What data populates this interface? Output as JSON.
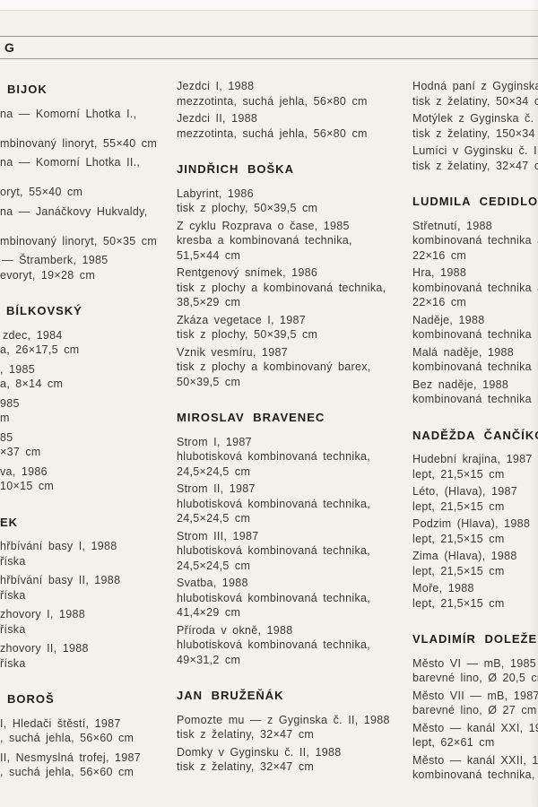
{
  "page": {
    "section_letter": "G"
  },
  "columns": {
    "left": {
      "lines": [
        "BIJOK",
        "na — Komorní Lhotka I.,",
        "",
        "mbinovaný linoryt, 55×40 cm",
        "na — Komorní Lhotka II.,",
        "",
        "oryt, 55×40 cm",
        "na — Janáčkovy Hukvaldy,",
        "",
        "mbinovaný linoryt, 50×35 cm",
        "— Štramberk, 1985",
        "evoryt, 19×28 cm",
        "BÍLKOVSKÝ",
        "zdec, 1984",
        "a, 26×17,5 cm",
        ", 1985",
        "a, 8×14 cm",
        "985",
        "m",
        "85",
        "×37 cm",
        "va, 1986",
        "10×15 cm",
        "EK",
        "hřbívání basy I, 1988",
        "říska",
        "hřbívání basy II, 1988",
        "říska",
        "zhovory I, 1988",
        "říska",
        "zhovory II, 1988",
        "říska",
        "BOROŠ",
        "I, Hledači štěstí, 1987",
        ", suchá jehla, 56×60 cm",
        "II, Nesmyslná trofej, 1987",
        ", suchá jehla, 56×60 cm"
      ]
    },
    "middle": {
      "lines": [
        "Jezdci I, 1988",
        "mezzotinta, suchá jehla, 56×80 cm",
        "Jezdci II, 1988",
        "mezzotinta, suchá jehla, 56×80 cm",
        "JINDŘICH BOŠKA",
        "Labyrint, 1986",
        "tisk z plochy, 50×39,5 cm",
        "Z cyklu Rozprava o čase, 1985",
        "kresba a kombinovaná technika,",
        "51,5×44 cm",
        "Rentgenový snímek, 1986",
        "tisk z plochy a kombinovaná technika,",
        "38,5×29 cm",
        "Zkáza vegetace I, 1987",
        "tisk z plochy, 50×39,5 cm",
        "Vznik vesmíru, 1987",
        "tisk z plochy a kombinovaný barex,",
        "50×39,5 cm",
        "MIROSLAV BRAVENEC",
        "Strom I, 1987",
        "hlubotisková kombinovaná technika,",
        "24,5×24,5 cm",
        "Strom II, 1987",
        "hlubotisková kombinovaná technika,",
        "24,5×24,5 cm",
        "Strom III, 1987",
        "hlubotisková kombinovaná technika,",
        "24,5×24,5 cm",
        "Svatba, 1988",
        "hlubotisková kombinovaná technika,",
        "41,4×29 cm",
        "Příroda v okně, 1988",
        "hlubotisková kombinovaná technika,",
        "49×31,2 cm",
        "JAN BRUŽEŇÁK",
        "Pomozte mu — z Gyginska č. II, 1988",
        "tisk z želatiny, 32×47 cm",
        "Domky v Gyginsku č. II, 1988",
        "tisk z želatiny, 32×47 cm"
      ]
    },
    "right": {
      "lines": [
        "Hodná paní z Gyginska",
        "tisk z želatiny, 50×34 cm",
        "Motýlek z Gyginska č. I",
        "tisk z želatiny, 150×34 c",
        "Lumíci v Gyginsku č. II,",
        "tisk z želatiny, 32×47 cm",
        "LUDMILA CEDIDLOVÁ",
        "Střetnutí, 1988",
        "kombinovaná technika a",
        "22×16 cm",
        "Hra, 1988",
        "kombinovaná technika a",
        "22×16 cm",
        "Naděje, 1988",
        "kombinovaná technika b",
        "Malá naděje, 1988",
        "kombinovaná technika b",
        "Bez naděje, 1988",
        "kombinovaná technika b",
        "NADĚŽDA ČANČÍKOVÁ",
        "Hudební krajina, 1987",
        "lept, 21,5×15 cm",
        "Léto, (Hlava), 1987",
        "lept, 21,5×15 cm",
        "Podzim (Hlava), 1988",
        "lept, 21,5×15 cm",
        "Zima (Hlava), 1988",
        "lept, 21,5×15 cm",
        "Moře, 1988",
        "lept, 21,5×15 cm",
        "VLADIMÍR DOLEŽEL",
        "Město VI — mB, 1985",
        "barevné lino, Ø 20,5 cm",
        "Město VII — mB, 1987",
        "barevné lino, Ø 27 cm",
        "Město — kanál XXI, 19",
        "lept, 62×61 cm",
        "Město — kanál XXII, 19",
        "kombinovaná technika,"
      ]
    }
  }
}
